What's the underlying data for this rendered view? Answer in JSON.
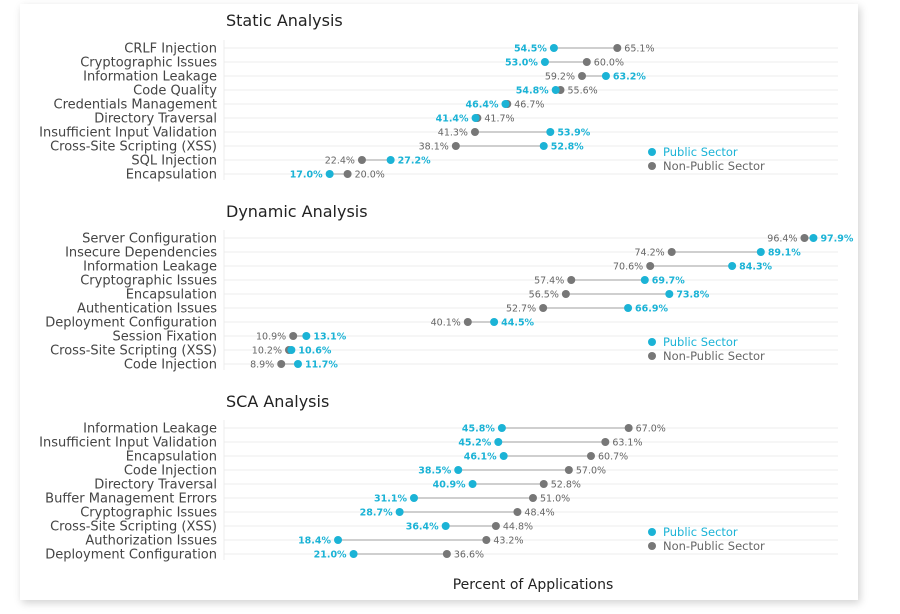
{
  "colors": {
    "public": "#1bb3d6",
    "nonpublic": "#777777",
    "connector": "#cfcfcf",
    "grid": "#ececec",
    "label": "#444444",
    "title": "#222222"
  },
  "legend": {
    "public_label": "Public Sector",
    "nonpublic_label": "Non-Public Sector"
  },
  "xlabel": "Percent of Applications",
  "chart_data": [
    {
      "type": "dumbbell",
      "title": "Static Analysis",
      "xlim": [
        0,
        100
      ],
      "grid": true,
      "legend_position": "bottom-right",
      "series": [
        {
          "name": "Public Sector"
        },
        {
          "name": "Non-Public Sector"
        }
      ],
      "rows": [
        {
          "category": "CRLF Injection",
          "public": 54.5,
          "nonpublic": 65.1
        },
        {
          "category": "Cryptographic Issues",
          "public": 53.0,
          "nonpublic": 60.0
        },
        {
          "category": "Information Leakage",
          "public": 63.2,
          "nonpublic": 59.2
        },
        {
          "category": "Code Quality",
          "public": 54.8,
          "nonpublic": 55.6
        },
        {
          "category": "Credentials Management",
          "public": 46.4,
          "nonpublic": 46.7
        },
        {
          "category": "Directory Traversal",
          "public": 41.4,
          "nonpublic": 41.7
        },
        {
          "category": "Insufficient Input Validation",
          "public": 53.9,
          "nonpublic": 41.3
        },
        {
          "category": "Cross-Site Scripting (XSS)",
          "public": 52.8,
          "nonpublic": 38.1
        },
        {
          "category": "SQL Injection",
          "public": 27.2,
          "nonpublic": 22.4
        },
        {
          "category": "Encapsulation",
          "public": 17.0,
          "nonpublic": 20.0
        }
      ]
    },
    {
      "type": "dumbbell",
      "title": "Dynamic Analysis",
      "xlim": [
        0,
        100
      ],
      "grid": true,
      "legend_position": "bottom-right",
      "series": [
        {
          "name": "Public Sector"
        },
        {
          "name": "Non-Public Sector"
        }
      ],
      "rows": [
        {
          "category": "Server Configuration",
          "public": 97.9,
          "nonpublic": 96.4
        },
        {
          "category": "Insecure Dependencies",
          "public": 89.1,
          "nonpublic": 74.2
        },
        {
          "category": "Information Leakage",
          "public": 84.3,
          "nonpublic": 70.6
        },
        {
          "category": "Cryptographic Issues",
          "public": 69.7,
          "nonpublic": 57.4
        },
        {
          "category": "Encapsulation",
          "public": 73.8,
          "nonpublic": 56.5
        },
        {
          "category": "Authentication Issues",
          "public": 66.9,
          "nonpublic": 52.7
        },
        {
          "category": "Deployment Configuration",
          "public": 44.5,
          "nonpublic": 40.1
        },
        {
          "category": "Session Fixation",
          "public": 13.1,
          "nonpublic": 10.9
        },
        {
          "category": "Cross-Site Scripting (XSS)",
          "public": 10.6,
          "nonpublic": 10.2
        },
        {
          "category": "Code Injection",
          "public": 11.7,
          "nonpublic": 8.9
        }
      ]
    },
    {
      "type": "dumbbell",
      "title": "SCA Analysis",
      "xlim": [
        0,
        100
      ],
      "grid": true,
      "legend_position": "bottom-right",
      "series": [
        {
          "name": "Public Sector"
        },
        {
          "name": "Non-Public Sector"
        }
      ],
      "rows": [
        {
          "category": "Information Leakage",
          "public": 45.8,
          "nonpublic": 67.0
        },
        {
          "category": "Insufficient Input Validation",
          "public": 45.2,
          "nonpublic": 63.1
        },
        {
          "category": "Encapsulation",
          "public": 46.1,
          "nonpublic": 60.7
        },
        {
          "category": "Code Injection",
          "public": 38.5,
          "nonpublic": 57.0
        },
        {
          "category": "Directory Traversal",
          "public": 40.9,
          "nonpublic": 52.8
        },
        {
          "category": "Buffer Management Errors",
          "public": 31.1,
          "nonpublic": 51.0
        },
        {
          "category": "Cryptographic Issues",
          "public": 28.7,
          "nonpublic": 48.4
        },
        {
          "category": "Cross-Site Scripting (XSS)",
          "public": 36.4,
          "nonpublic": 44.8
        },
        {
          "category": "Authorization Issues",
          "public": 18.4,
          "nonpublic": 43.2
        },
        {
          "category": "Deployment Configuration",
          "public": 21.0,
          "nonpublic": 36.6
        }
      ]
    }
  ]
}
